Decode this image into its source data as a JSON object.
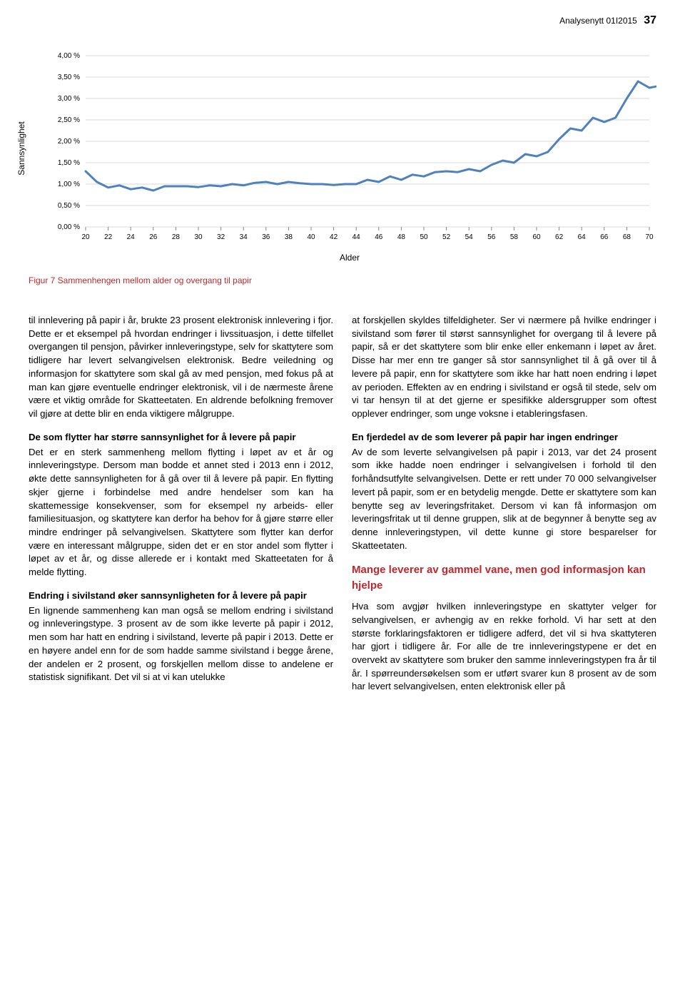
{
  "header": {
    "journal": "Analysenytt 01I2015",
    "page": "37"
  },
  "chart": {
    "type": "line",
    "y_axis_title": "Sannsynlighet",
    "x_axis_title": "Alder",
    "x_ticks": [
      "20",
      "22",
      "24",
      "26",
      "28",
      "30",
      "32",
      "34",
      "36",
      "38",
      "40",
      "42",
      "44",
      "46",
      "48",
      "50",
      "52",
      "54",
      "56",
      "58",
      "60",
      "62",
      "64",
      "66",
      "68",
      "70"
    ],
    "y_ticks": [
      "0,00 %",
      "0,50 %",
      "1,00 %",
      "1,50 %",
      "2,00 %",
      "2,50 %",
      "3,00 %",
      "3,50 %",
      "4,00 %"
    ],
    "ylim": [
      0,
      4
    ],
    "xlim": [
      20,
      70
    ],
    "line_color": "#4f81bd",
    "line_width": 3,
    "gridline_color": "#d9d9d9",
    "background_color": "#ffffff",
    "tick_font_size": 10,
    "series": [
      {
        "x": 20,
        "y": 1.3
      },
      {
        "x": 21,
        "y": 1.05
      },
      {
        "x": 22,
        "y": 0.92
      },
      {
        "x": 23,
        "y": 0.97
      },
      {
        "x": 24,
        "y": 0.88
      },
      {
        "x": 25,
        "y": 0.92
      },
      {
        "x": 26,
        "y": 0.85
      },
      {
        "x": 27,
        "y": 0.95
      },
      {
        "x": 28,
        "y": 0.95
      },
      {
        "x": 29,
        "y": 0.95
      },
      {
        "x": 30,
        "y": 0.93
      },
      {
        "x": 31,
        "y": 0.97
      },
      {
        "x": 32,
        "y": 0.95
      },
      {
        "x": 33,
        "y": 1.0
      },
      {
        "x": 34,
        "y": 0.97
      },
      {
        "x": 35,
        "y": 1.03
      },
      {
        "x": 36,
        "y": 1.05
      },
      {
        "x": 37,
        "y": 1.0
      },
      {
        "x": 38,
        "y": 1.05
      },
      {
        "x": 39,
        "y": 1.02
      },
      {
        "x": 40,
        "y": 1.0
      },
      {
        "x": 41,
        "y": 1.0
      },
      {
        "x": 42,
        "y": 0.98
      },
      {
        "x": 43,
        "y": 1.0
      },
      {
        "x": 44,
        "y": 1.0
      },
      {
        "x": 45,
        "y": 1.1
      },
      {
        "x": 46,
        "y": 1.05
      },
      {
        "x": 47,
        "y": 1.18
      },
      {
        "x": 48,
        "y": 1.1
      },
      {
        "x": 49,
        "y": 1.22
      },
      {
        "x": 50,
        "y": 1.18
      },
      {
        "x": 51,
        "y": 1.28
      },
      {
        "x": 52,
        "y": 1.3
      },
      {
        "x": 53,
        "y": 1.28
      },
      {
        "x": 54,
        "y": 1.35
      },
      {
        "x": 55,
        "y": 1.3
      },
      {
        "x": 56,
        "y": 1.45
      },
      {
        "x": 57,
        "y": 1.55
      },
      {
        "x": 58,
        "y": 1.5
      },
      {
        "x": 59,
        "y": 1.7
      },
      {
        "x": 60,
        "y": 1.65
      },
      {
        "x": 61,
        "y": 1.75
      },
      {
        "x": 62,
        "y": 2.05
      },
      {
        "x": 63,
        "y": 2.3
      },
      {
        "x": 64,
        "y": 2.25
      },
      {
        "x": 65,
        "y": 2.55
      },
      {
        "x": 66,
        "y": 2.45
      },
      {
        "x": 67,
        "y": 2.55
      },
      {
        "x": 68,
        "y": 3.0
      },
      {
        "x": 69,
        "y": 3.4
      },
      {
        "x": 70,
        "y": 3.25
      },
      {
        "x": 71,
        "y": 3.3
      }
    ]
  },
  "caption": "Figur 7 Sammenhengen mellom alder og overgang til papir",
  "left": {
    "p1": "til innlevering på papir i år, brukte 23 prosent elektronisk innlevering i fjor. Dette er et eksempel på hvordan endringer i livssituasjon, i dette tilfellet overgangen til pensjon, påvirker innleveringstype, selv for skattytere som tidligere har levert selvangivelsen elektronisk. Bedre veiledning og informasjon for skattytere som skal gå av med pensjon, med fokus på at man kan gjøre eventuelle endringer elektronisk, vil i de nærmeste årene være et viktig område for Skatteetaten. En aldrende befolkning fremover vil gjøre at dette blir en enda viktigere målgruppe.",
    "sub1": "De som flytter har større sannsynlighet for å levere på papir",
    "p2": "Det er en sterk sammenheng mellom flytting i løpet av et år og innleveringstype. Dersom man bodde et annet sted i 2013 enn i 2012, økte dette sannsynligheten for å gå over til å levere på papir. En flytting skjer gjerne i forbindelse med andre hendelser som kan ha skattemessige konsekvenser, som for eksempel ny arbeids- eller familiesituasjon, og skattytere kan derfor ha behov for å gjøre større eller mindre endringer på selvangivelsen. Skattytere som flytter kan derfor være en interessant målgruppe, siden det er en stor andel som flytter i løpet av et år, og disse allerede er i kontakt med Skatteetaten for å melde flytting.",
    "sub2": "Endring i sivilstand øker sannsynligheten for å levere på papir",
    "p3": "En lignende sammenheng kan man også se mellom endring i sivilstand og innleveringstype. 3 prosent av de som ikke leverte på papir i 2012, men som har hatt en endring i sivilstand, leverte på papir i 2013. Dette er en høyere andel enn for de som hadde samme sivilstand i begge årene, der andelen er 2 prosent, og forskjellen mellom disse to andelene er statistisk signifikant. Det vil si at vi kan utelukke"
  },
  "right": {
    "p1": "at forskjellen skyldes tilfeldigheter. Ser vi nærmere på hvilke endringer i sivilstand som fører til størst sannsynlighet for overgang til å levere på papir, så er det skattytere som blir enke eller enkemann i løpet av året. Disse har mer enn tre ganger så stor sannsynlighet til å gå over til å levere på papir, enn for skattytere som ikke har hatt noen endring i løpet av perioden. Effekten av en endring i sivilstand er også til stede, selv om vi tar hensyn til at det gjerne er spesifikke aldersgrupper som oftest opplever endringer, som unge voksne i etableringsfasen.",
    "sub1": "En fjerdedel av de som leverer på papir har ingen endringer",
    "p2": "Av de som leverte selvangivelsen på papir i 2013, var det 24 prosent som ikke hadde noen endringer i selvangivelsen i forhold til den forhåndsutfylte selvangivelsen. Dette er rett under 70 000 selvangivelser levert på papir, som er en betydelig mengde. Dette er skattytere som kan benytte seg av leveringsfritaket. Dersom vi kan få informasjon om leveringsfritak ut til denne gruppen, slik at de begynner å benytte seg av denne innleveringstypen, vil dette kunne gi store besparelser for Skatteetaten.",
    "h1": "Mange leverer av gammel vane, men god informasjon kan hjelpe",
    "p3": "Hva som avgjør hvilken innleveringstype en skattyter velger for selvangivelsen, er avhengig av en rekke forhold. Vi har sett at den største forklaringsfaktoren er tidligere adferd, det vil si hva skattyteren har gjort i tidligere år. For alle de tre innleveringstypene er det en overvekt av skattytere som bruker den samme innleveringstypen fra år til år. I spørreundersøkelsen som er utført svarer kun 8 prosent av de som har levert selvangivelsen, enten elektronisk eller på"
  }
}
